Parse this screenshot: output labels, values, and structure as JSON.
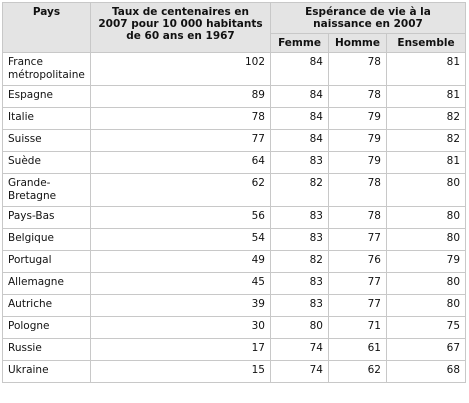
{
  "table": {
    "header": {
      "country": "Pays",
      "rate": "Taux de centenaires en 2007 pour 10 000 habitants de 60 ans en 1967",
      "life": "Espérance de vie à la naissance en 2007",
      "sub": [
        "Femme",
        "Homme",
        "Ensemble"
      ]
    },
    "rows": [
      [
        "France métropolitaine",
        102,
        84,
        78,
        81
      ],
      [
        "Espagne",
        89,
        84,
        78,
        81
      ],
      [
        "Italie",
        78,
        84,
        79,
        82
      ],
      [
        "Suisse",
        77,
        84,
        79,
        82
      ],
      [
        "Suède",
        64,
        83,
        79,
        81
      ],
      [
        "Grande-Bretagne",
        62,
        82,
        78,
        80
      ],
      [
        "Pays-Bas",
        56,
        83,
        78,
        80
      ],
      [
        "Belgique",
        54,
        83,
        77,
        80
      ],
      [
        "Portugal",
        49,
        82,
        76,
        79
      ],
      [
        "Allemagne",
        45,
        83,
        77,
        80
      ],
      [
        "Autriche",
        39,
        83,
        77,
        80
      ],
      [
        "Pologne",
        30,
        80,
        71,
        75
      ],
      [
        "Russie",
        17,
        74,
        61,
        67
      ],
      [
        "Ukraine",
        15,
        74,
        62,
        68
      ]
    ]
  }
}
